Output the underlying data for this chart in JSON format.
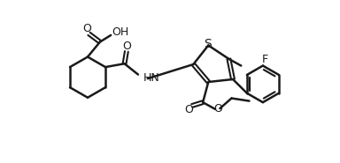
{
  "line_color": "#1a1a1a",
  "bg_color": "#ffffff",
  "line_width": 1.8,
  "font_size": 9
}
